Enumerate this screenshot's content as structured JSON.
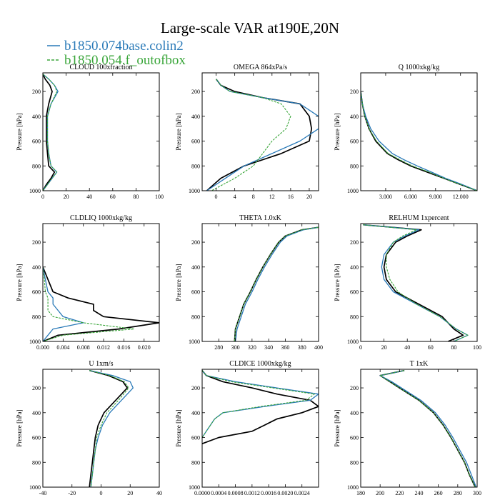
{
  "title": "Large-scale VAR at190E,20N",
  "legend": {
    "placement": "top-left",
    "entries": [
      {
        "label": "b1850.074base.colin2",
        "color": "#2a7ab8",
        "dash": "solid"
      },
      {
        "label": "b1850.054.f_outofbox",
        "color": "#3aa63a",
        "dash": "dashed"
      }
    ]
  },
  "reference_color": "#000000",
  "chart_data": [
    {
      "type": "line",
      "title": "CLOUD  100xfraction",
      "ylabel": "Pressure [hPa]",
      "xlim": [
        0,
        100
      ],
      "ylim": [
        1000,
        50
      ],
      "y_inverted": true,
      "grid": false,
      "xticks": [
        0,
        20,
        40,
        60,
        80,
        100
      ],
      "xtick_labels": [
        "0",
        "20",
        "40",
        "60",
        "80",
        "100"
      ],
      "yticks": [
        200,
        400,
        600,
        800,
        1000
      ],
      "series": [
        {
          "y": [
            60,
            100,
            150,
            200,
            300,
            400,
            500,
            600,
            700,
            800,
            850,
            900,
            950,
            1000
          ],
          "x": [
            0,
            2,
            6,
            8,
            5,
            3,
            3,
            3,
            4,
            5,
            10,
            7,
            3,
            0
          ]
        },
        {
          "y": [
            60,
            100,
            150,
            200,
            300,
            400,
            500,
            600,
            700,
            800,
            850,
            900,
            950,
            1000
          ],
          "x": [
            0,
            5,
            10,
            13,
            7,
            4,
            4,
            4,
            5,
            7,
            12,
            8,
            4,
            0
          ]
        },
        {
          "y": [
            60,
            100,
            150,
            200,
            300,
            400,
            500,
            600,
            700,
            800,
            850,
            900,
            950,
            1000
          ],
          "x": [
            0,
            5,
            10,
            12,
            7,
            4,
            4,
            4,
            5,
            7,
            12,
            8,
            4,
            0
          ]
        }
      ]
    },
    {
      "type": "line",
      "title": "OMEGA  864xPa/s",
      "ylabel": "Pressure [hPa]",
      "xlim": [
        -3,
        22
      ],
      "ylim": [
        1000,
        50
      ],
      "y_inverted": true,
      "grid": false,
      "xticks": [
        0,
        4,
        8,
        12,
        16,
        20
      ],
      "xtick_labels": [
        "0",
        "4",
        "8",
        "12",
        "16",
        "20"
      ],
      "yticks": [
        200,
        400,
        600,
        800,
        1000
      ],
      "series": [
        {
          "y": [
            100,
            150,
            200,
            250,
            300,
            400,
            500,
            600,
            700,
            800,
            900,
            1000
          ],
          "x": [
            0,
            1,
            4,
            10,
            18,
            20,
            20.5,
            20,
            14,
            6,
            1,
            -2
          ]
        },
        {
          "y": [
            100,
            150,
            200,
            250,
            300,
            400,
            500,
            600,
            700,
            800,
            900,
            1000
          ],
          "x": [
            0,
            1,
            3,
            10,
            18,
            22,
            22,
            18,
            12,
            6,
            2,
            -2
          ]
        },
        {
          "y": [
            100,
            150,
            200,
            250,
            300,
            400,
            500,
            600,
            700,
            800,
            900,
            1000
          ],
          "x": [
            0,
            1,
            3,
            10,
            14,
            16,
            15,
            12,
            10,
            8,
            4,
            -1
          ]
        }
      ]
    },
    {
      "type": "line",
      "title": "Q  1000xkg/kg",
      "ylabel": "Pressure [hPa]",
      "xlim": [
        0,
        14
      ],
      "ylim": [
        1000,
        50
      ],
      "y_inverted": true,
      "grid": false,
      "xticks": [
        3,
        6,
        9,
        12
      ],
      "xtick_labels": [
        "3.000",
        "6.000",
        "9.000",
        "12.000"
      ],
      "yticks": [
        200,
        400,
        600,
        800,
        1000
      ],
      "series": [
        {
          "y": [
            200,
            300,
            400,
            500,
            600,
            700,
            750,
            800,
            850,
            900,
            950,
            1000
          ],
          "x": [
            0,
            0.2,
            0.5,
            1,
            1.8,
            3.2,
            4.5,
            6,
            8,
            10,
            12,
            14
          ]
        },
        {
          "y": [
            200,
            300,
            400,
            500,
            600,
            700,
            750,
            800,
            850,
            900,
            950,
            1000
          ],
          "x": [
            0,
            0.2,
            0.6,
            1.2,
            2.2,
            3.8,
            5.2,
            6.8,
            8.5,
            10.2,
            12.2,
            14
          ]
        },
        {
          "y": [
            200,
            300,
            400,
            500,
            600,
            700,
            750,
            800,
            850,
            900,
            950,
            1000
          ],
          "x": [
            0,
            0.2,
            0.5,
            1,
            1.9,
            3.3,
            4.7,
            6.2,
            8.2,
            10,
            12,
            14
          ]
        }
      ]
    },
    {
      "type": "line",
      "title": "CLDLIQ  1000xkg/kg",
      "ylabel": "Pressure [hPa]",
      "xlim": [
        0,
        0.023
      ],
      "ylim": [
        1000,
        50
      ],
      "y_inverted": true,
      "grid": false,
      "xticks": [
        0,
        0.004,
        0.008,
        0.012,
        0.016,
        0.02
      ],
      "xtick_labels": [
        "0.000",
        "0.004",
        "0.008",
        "0.012",
        "0.016",
        "0.020"
      ],
      "yticks": [
        200,
        400,
        600,
        800,
        1000
      ],
      "series": [
        {
          "y": [
            400,
            500,
            600,
            650,
            700,
            750,
            800,
            850,
            900,
            950,
            1000
          ],
          "x": [
            0,
            0.001,
            0.002,
            0.005,
            0.01,
            0.01,
            0.012,
            0.023,
            0.015,
            0.003,
            0
          ]
        },
        {
          "y": [
            400,
            500,
            600,
            650,
            700,
            750,
            800,
            850,
            900,
            950,
            1000
          ],
          "x": [
            0,
            0.0005,
            0.001,
            0.002,
            0.002,
            0.003,
            0.004,
            0.008,
            0.002,
            0.001,
            0
          ]
        },
        {
          "y": [
            400,
            500,
            600,
            650,
            700,
            750,
            800,
            850,
            900,
            950,
            1000
          ],
          "x": [
            0,
            0.0003,
            0.0005,
            0.001,
            0.001,
            0.001,
            0.002,
            0.008,
            0.018,
            0.004,
            0
          ]
        }
      ]
    },
    {
      "type": "line",
      "title": "THETA  1.0xK",
      "ylabel": "Pressure [hPa]",
      "xlim": [
        260,
        400
      ],
      "ylim": [
        1000,
        50
      ],
      "y_inverted": true,
      "grid": false,
      "xticks": [
        280,
        300,
        320,
        340,
        360,
        380,
        400
      ],
      "xtick_labels": [
        "280",
        "300",
        "320",
        "340",
        "360",
        "380",
        "400"
      ],
      "yticks": [
        200,
        400,
        600,
        800,
        1000
      ],
      "series": [
        {
          "y": [
            80,
            100,
            150,
            200,
            300,
            400,
            500,
            600,
            700,
            800,
            900,
            1000
          ],
          "x": [
            400,
            380,
            360,
            352,
            342,
            333,
            325,
            318,
            310,
            305,
            300,
            299
          ]
        },
        {
          "y": [
            80,
            100,
            150,
            200,
            300,
            400,
            500,
            600,
            700,
            800,
            900,
            1000
          ],
          "x": [
            400,
            382,
            362,
            354,
            344,
            335,
            327,
            320,
            312,
            307,
            302,
            300
          ]
        },
        {
          "y": [
            80,
            100,
            150,
            200,
            300,
            400,
            500,
            600,
            700,
            800,
            900,
            1000
          ],
          "x": [
            400,
            380,
            360,
            352,
            342,
            333,
            325,
            318,
            310,
            305,
            300,
            299
          ]
        }
      ]
    },
    {
      "type": "line",
      "title": "RELHUM  1xpercent",
      "ylabel": "Pressure [hPa]",
      "xlim": [
        0,
        100
      ],
      "ylim": [
        1000,
        50
      ],
      "y_inverted": true,
      "grid": false,
      "xticks": [
        0,
        20,
        40,
        60,
        80,
        100
      ],
      "xtick_labels": [
        "0",
        "20",
        "40",
        "60",
        "80",
        "100"
      ],
      "yticks": [
        200,
        400,
        600,
        800,
        1000
      ],
      "series": [
        {
          "y": [
            60,
            100,
            150,
            200,
            300,
            400,
            500,
            600,
            700,
            800,
            900,
            950,
            1000
          ],
          "x": [
            2,
            52,
            40,
            30,
            22,
            20,
            22,
            30,
            50,
            70,
            80,
            88,
            75
          ]
        },
        {
          "y": [
            60,
            100,
            150,
            200,
            300,
            400,
            500,
            600,
            700,
            800,
            900,
            950,
            1000
          ],
          "x": [
            2,
            50,
            38,
            28,
            20,
            18,
            20,
            28,
            48,
            68,
            82,
            92,
            80
          ]
        },
        {
          "y": [
            60,
            100,
            150,
            200,
            300,
            400,
            500,
            600,
            700,
            800,
            900,
            950,
            1000
          ],
          "x": [
            2,
            48,
            36,
            28,
            22,
            22,
            25,
            32,
            48,
            68,
            82,
            92,
            80
          ]
        }
      ]
    },
    {
      "type": "line",
      "title": "U  1xm/s",
      "ylabel": "Pressure [hPa]",
      "xlim": [
        -40,
        40
      ],
      "ylim": [
        1000,
        50
      ],
      "y_inverted": true,
      "grid": false,
      "xticks": [
        -40,
        -20,
        0,
        20,
        40
      ],
      "xtick_labels": [
        "-40",
        "-20",
        "0",
        "20",
        "40"
      ],
      "yticks": [
        200,
        400,
        600,
        800,
        1000
      ],
      "series": [
        {
          "y": [
            60,
            100,
            150,
            200,
            300,
            400,
            500,
            600,
            700,
            800,
            900,
            1000
          ],
          "x": [
            -8,
            5,
            15,
            18,
            10,
            2,
            -2,
            -4,
            -5,
            -6,
            -7,
            -8
          ]
        },
        {
          "y": [
            60,
            100,
            150,
            200,
            300,
            400,
            500,
            600,
            700,
            800,
            900,
            1000
          ],
          "x": [
            -8,
            8,
            20,
            22,
            14,
            6,
            1,
            -2,
            -4,
            -5,
            -6,
            -7
          ]
        },
        {
          "y": [
            60,
            100,
            150,
            200,
            300,
            400,
            500,
            600,
            700,
            800,
            900,
            1000
          ],
          "x": [
            -8,
            6,
            16,
            19,
            12,
            4,
            0,
            -3,
            -4,
            -5,
            -6,
            -7
          ]
        }
      ]
    },
    {
      "type": "line",
      "title": "CLDICE  1000xkg/kg",
      "ylabel": "Pressure [hPa]",
      "xlim": [
        0,
        0.0028
      ],
      "ylim": [
        1000,
        50
      ],
      "y_inverted": true,
      "grid": false,
      "xticks": [
        0,
        0.0004,
        0.0008,
        0.0012,
        0.0016,
        0.002,
        0.0024
      ],
      "xtick_labels": [
        "0.0000",
        "0.0004",
        "0.0008",
        "0.0012",
        "0.0016",
        "0.0020",
        "0.0024"
      ],
      "yticks": [
        200,
        400,
        600,
        800,
        1000
      ],
      "series": [
        {
          "y": [
            60,
            100,
            150,
            200,
            250,
            300,
            350,
            400,
            450,
            500,
            550,
            600,
            650
          ],
          "x": [
            0,
            0.0001,
            0.0005,
            0.0012,
            0.0018,
            0.0026,
            0.0028,
            0.0024,
            0.0018,
            0.0015,
            0.0012,
            0.0004,
            0
          ]
        },
        {
          "y": [
            60,
            100,
            150,
            200,
            250,
            300,
            350,
            400,
            450,
            500,
            550,
            600
          ],
          "x": [
            0,
            0.0001,
            0.0008,
            0.0018,
            0.0028,
            0.0026,
            0.0015,
            0.0005,
            0.0003,
            0.0002,
            0.0001,
            0
          ]
        },
        {
          "y": [
            60,
            100,
            150,
            200,
            250,
            300,
            350,
            400,
            450,
            500,
            550,
            600
          ],
          "x": [
            0,
            0.0001,
            0.0007,
            0.0017,
            0.0027,
            0.0025,
            0.0014,
            0.0005,
            0.0003,
            0.0002,
            0.0001,
            0
          ]
        }
      ]
    },
    {
      "type": "line",
      "title": "T  1xK",
      "ylabel": "Pressure [hPa]",
      "xlim": [
        180,
        300
      ],
      "ylim": [
        1000,
        50
      ],
      "y_inverted": true,
      "grid": false,
      "xticks": [
        180,
        200,
        220,
        240,
        260,
        280,
        300
      ],
      "xtick_labels": [
        "180",
        "200",
        "220",
        "240",
        "260",
        "280",
        "300"
      ],
      "yticks": [
        200,
        400,
        600,
        800,
        1000
      ],
      "series": [
        {
          "y": [
            60,
            100,
            150,
            200,
            300,
            400,
            500,
            600,
            700,
            800,
            900,
            1000
          ],
          "x": [
            225,
            200,
            210,
            220,
            240,
            255,
            265,
            273,
            280,
            287,
            292,
            298
          ]
        },
        {
          "y": [
            60,
            100,
            150,
            200,
            300,
            400,
            500,
            600,
            700,
            800,
            900,
            1000
          ],
          "x": [
            225,
            200,
            212,
            222,
            242,
            257,
            267,
            275,
            282,
            289,
            294,
            299
          ]
        },
        {
          "y": [
            60,
            100,
            150,
            200,
            300,
            400,
            500,
            600,
            700,
            800,
            900,
            1000
          ],
          "x": [
            225,
            200,
            210,
            220,
            240,
            255,
            265,
            273,
            280,
            287,
            292,
            298
          ]
        }
      ]
    }
  ]
}
